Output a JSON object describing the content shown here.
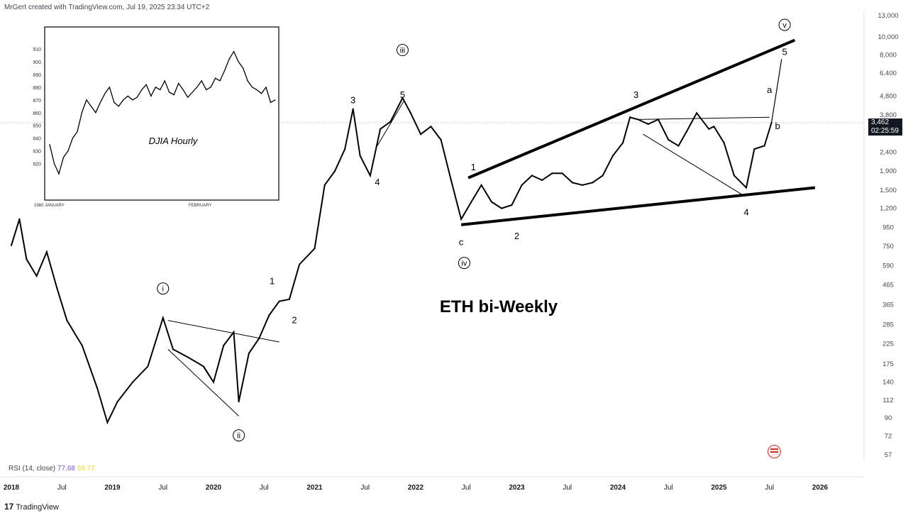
{
  "header": {
    "credit": "MrGert created with TradingView.com, Jul 19, 2025 23:34 UTC+2"
  },
  "footer": {
    "brand": "TradingView",
    "brand_mark": "17"
  },
  "rsi": {
    "label": "RSI (14, close)",
    "value1": "77.68",
    "value2": "59.77",
    "value1_color": "#7e57c2",
    "value2_color": "#f2d233"
  },
  "current_price": {
    "value": "3,462",
    "countdown": "02:25:59"
  },
  "chart_data": [
    {
      "type": "line",
      "title": "ETH bi-Weekly",
      "y_scale": "log",
      "y_ticks": [
        "13,000",
        "10,000",
        "8,000",
        "6,400",
        "4,800",
        "3,800",
        "2,400",
        "1,900",
        "1,500",
        "1,200",
        "950",
        "750",
        "590",
        "465",
        "365",
        "285",
        "225",
        "175",
        "140",
        "112",
        "90",
        "72",
        "57"
      ],
      "y_tick_values": [
        13000,
        10000,
        8000,
        6400,
        4800,
        3800,
        2400,
        1900,
        1500,
        1200,
        950,
        750,
        590,
        465,
        365,
        285,
        225,
        175,
        140,
        112,
        90,
        72,
        57
      ],
      "x_ticks": [
        "2018",
        "Jul",
        "2019",
        "Jul",
        "2020",
        "Jul",
        "2021",
        "Jul",
        "2022",
        "Jul",
        "2023",
        "Jul",
        "2024",
        "Jul",
        "2025",
        "Jul",
        "2026"
      ],
      "x_tick_values": [
        2018.0,
        2018.5,
        2019.0,
        2019.5,
        2020.0,
        2020.5,
        2021.0,
        2021.5,
        2022.0,
        2022.5,
        2023.0,
        2023.5,
        2024.0,
        2024.5,
        2025.0,
        2025.5,
        2026.0
      ],
      "x": [
        2018.0,
        2018.08,
        2018.15,
        2018.25,
        2018.35,
        2018.45,
        2018.55,
        2018.7,
        2018.85,
        2018.95,
        2019.05,
        2019.2,
        2019.35,
        2019.5,
        2019.6,
        2019.75,
        2019.9,
        2020.0,
        2020.1,
        2020.2,
        2020.25,
        2020.35,
        2020.45,
        2020.55,
        2020.65,
        2020.75,
        2020.85,
        2021.0,
        2021.1,
        2021.2,
        2021.3,
        2021.38,
        2021.45,
        2021.55,
        2021.65,
        2021.75,
        2021.87,
        2021.95,
        2022.05,
        2022.15,
        2022.25,
        2022.35,
        2022.45,
        2022.55,
        2022.65,
        2022.75,
        2022.85,
        2022.95,
        2023.05,
        2023.15,
        2023.25,
        2023.35,
        2023.45,
        2023.55,
        2023.65,
        2023.75,
        2023.85,
        2023.95,
        2024.05,
        2024.12,
        2024.2,
        2024.3,
        2024.4,
        2024.5,
        2024.6,
        2024.68,
        2024.78,
        2024.9,
        2024.95,
        2025.05,
        2025.15,
        2025.27,
        2025.35,
        2025.45,
        2025.52
      ],
      "values": [
        760,
        1050,
        640,
        520,
        700,
        450,
        300,
        220,
        130,
        85,
        110,
        140,
        170,
        310,
        210,
        190,
        170,
        140,
        220,
        260,
        110,
        200,
        240,
        320,
        380,
        390,
        600,
        730,
        1600,
        1900,
        2500,
        4100,
        2300,
        1800,
        3200,
        3500,
        4700,
        3900,
        3000,
        3300,
        2800,
        1700,
        1050,
        1300,
        1600,
        1300,
        1200,
        1250,
        1600,
        1800,
        1700,
        1850,
        1850,
        1650,
        1600,
        1650,
        1800,
        2300,
        2700,
        3700,
        3600,
        3400,
        3600,
        2800,
        2600,
        3100,
        3900,
        3200,
        3300,
        2700,
        1800,
        1550,
        2500,
        2600,
        3462
      ],
      "annotations": {
        "wave_labels": [
          "i",
          "ii",
          "iii",
          "iv",
          "v",
          "1",
          "2",
          "3",
          "4",
          "5",
          "a",
          "b",
          "c"
        ],
        "trendlines": "wedge / ending diagonal between 1200 and 1500 support and rising resistance toward 8,000"
      }
    },
    {
      "type": "line",
      "title": "DJIA Hourly",
      "y_ticks": [
        "910",
        "900",
        "890",
        "880",
        "870",
        "860",
        "850",
        "840",
        "830",
        "820"
      ],
      "y_tick_values": [
        910,
        900,
        890,
        880,
        870,
        860,
        850,
        840,
        830,
        820
      ],
      "x_ticks": [
        "1980 JANUARY",
        "FEBRUARY"
      ],
      "x": [
        1,
        2,
        3,
        4,
        5,
        6,
        7,
        8,
        9,
        10,
        11,
        12,
        13,
        14,
        15,
        16,
        17,
        18,
        19,
        20,
        21,
        22,
        23,
        24,
        25,
        26,
        27,
        28,
        29,
        30,
        31,
        32,
        33,
        34,
        35,
        36,
        37,
        38,
        39,
        40,
        41,
        42,
        43,
        44,
        45,
        46,
        47,
        48,
        49,
        50
      ],
      "values": [
        835,
        820,
        812,
        825,
        830,
        840,
        845,
        860,
        870,
        865,
        860,
        868,
        875,
        880,
        868,
        865,
        870,
        873,
        870,
        872,
        878,
        882,
        873,
        880,
        878,
        885,
        876,
        874,
        883,
        878,
        872,
        876,
        880,
        885,
        878,
        880,
        887,
        885,
        893,
        902,
        908,
        900,
        895,
        885,
        880,
        878,
        875,
        880,
        868,
        870
      ]
    }
  ],
  "labels": {
    "main_waves": [
      {
        "t": "i",
        "circle": true
      },
      {
        "t": "ii",
        "circle": true
      },
      {
        "t": "iii",
        "circle": true
      },
      {
        "t": "iv",
        "circle": true
      },
      {
        "t": "v",
        "circle": true
      },
      {
        "t": "1"
      },
      {
        "t": "2"
      },
      {
        "t": "1"
      },
      {
        "t": "2"
      },
      {
        "t": "3"
      },
      {
        "t": "4"
      },
      {
        "t": "5"
      },
      {
        "t": "3"
      },
      {
        "t": "4"
      },
      {
        "t": "5"
      },
      {
        "t": "a"
      },
      {
        "t": "b"
      },
      {
        "t": "c"
      }
    ]
  }
}
